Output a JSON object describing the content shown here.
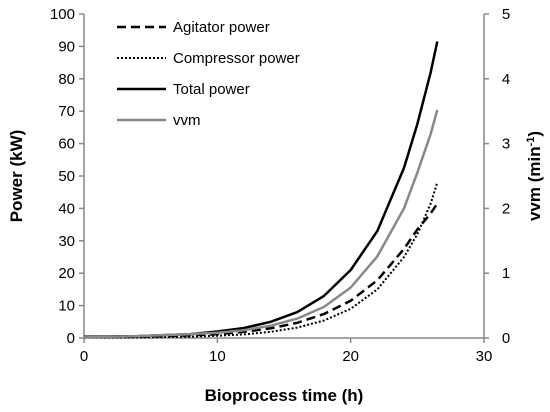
{
  "chart_data": {
    "type": "line",
    "xlabel": "Bioprocess time (h)",
    "ylabel_left": "Power (kW)",
    "ylabel_right": "vvm (min-1)",
    "ylabel_right_base": "vvm (min",
    "ylabel_right_sup": "-1",
    "ylabel_right_close": ")",
    "xlim": [
      0,
      30
    ],
    "ylim_left": [
      0,
      100
    ],
    "ylim_right": [
      0,
      5
    ],
    "x_ticks": [
      0,
      10,
      20,
      30
    ],
    "y_left_ticks": [
      0,
      10,
      20,
      30,
      40,
      50,
      60,
      70,
      80,
      90,
      100
    ],
    "y_right_ticks": [
      0,
      1,
      2,
      3,
      4,
      5
    ],
    "grid": false,
    "legend": "top-left",
    "series": [
      {
        "name": "Agitator power",
        "axis": "left",
        "color": "#000000",
        "style": "dashed",
        "x": [
          0,
          4,
          8,
          10,
          12,
          14,
          16,
          18,
          20,
          22,
          24,
          25,
          26,
          26.5
        ],
        "y": [
          0.3,
          0.4,
          0.8,
          1.2,
          1.9,
          3.0,
          4.7,
          7.4,
          11.5,
          17.8,
          27.5,
          33.5,
          38.5,
          41.5
        ]
      },
      {
        "name": "Compressor power",
        "axis": "left",
        "color": "#000000",
        "style": "dotted",
        "x": [
          0,
          4,
          8,
          10,
          12,
          14,
          16,
          18,
          20,
          22,
          24,
          25,
          26,
          26.5
        ],
        "y": [
          0.1,
          0.2,
          0.4,
          0.7,
          1.1,
          1.9,
          3.2,
          5.4,
          9.0,
          15.0,
          25.0,
          32.0,
          41.5,
          48.0
        ]
      },
      {
        "name": "Total power",
        "axis": "left",
        "color": "#000000",
        "style": "solid",
        "x": [
          0,
          4,
          8,
          10,
          12,
          14,
          16,
          18,
          20,
          22,
          24,
          25,
          26,
          26.5
        ],
        "y": [
          0.4,
          0.6,
          1.2,
          2.0,
          3.1,
          5.0,
          8.0,
          13.0,
          21.0,
          33.0,
          52.5,
          66.0,
          82.0,
          91.5
        ]
      },
      {
        "name": "vvm",
        "axis": "right",
        "color": "#888888",
        "style": "solid",
        "x": [
          0,
          4,
          8,
          10,
          12,
          14,
          16,
          18,
          20,
          22,
          24,
          25,
          26,
          26.5
        ],
        "y": [
          0.01,
          0.03,
          0.06,
          0.08,
          0.12,
          0.19,
          0.3,
          0.48,
          0.78,
          1.26,
          2.0,
          2.55,
          3.15,
          3.52
        ]
      }
    ]
  }
}
